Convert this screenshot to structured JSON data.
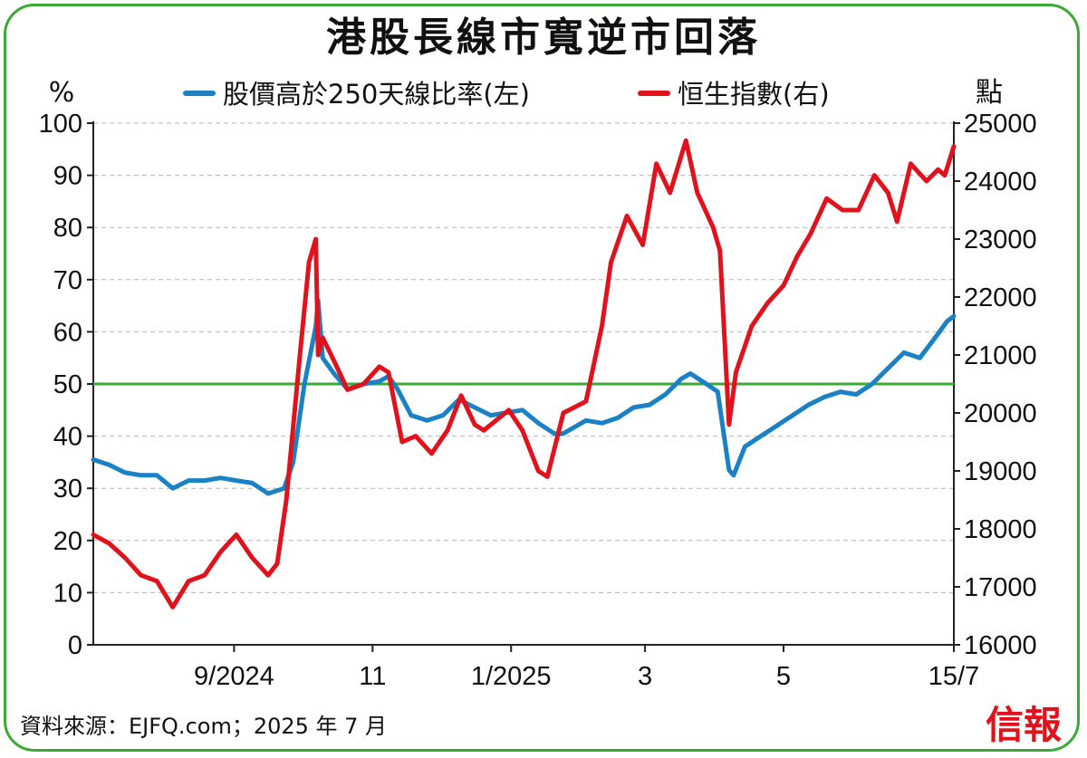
{
  "chart_data": {
    "type": "line",
    "title": "港股長線市寬逆市回落",
    "left_unit": "%",
    "right_unit": "點",
    "x_tick_labels": [
      "9/2024",
      "11",
      "1/2025",
      "3",
      "5",
      "15/7"
    ],
    "x_tick_dates": [
      "2024-09-01",
      "2024-11-01",
      "2025-01-01",
      "2025-03-01",
      "2025-05-01",
      "2025-07-15"
    ],
    "x_range": [
      "2024-07-01",
      "2025-07-15"
    ],
    "y_left": {
      "ticks": [
        0,
        10,
        20,
        30,
        40,
        50,
        60,
        70,
        80,
        90,
        100
      ],
      "range": [
        0,
        100
      ]
    },
    "y_right": {
      "ticks": [
        16000,
        17000,
        18000,
        19000,
        20000,
        21000,
        22000,
        23000,
        24000,
        25000
      ],
      "range": [
        16000,
        25000
      ]
    },
    "reference_line": {
      "axis": "left",
      "value": 50,
      "color": "#3aaa35"
    },
    "series": [
      {
        "name": "股價高於250天線比率(左)",
        "axis": "left",
        "color": "#1a82c4",
        "points": [
          [
            "2024-07-01",
            35.5
          ],
          [
            "2024-07-08",
            34.5
          ],
          [
            "2024-07-15",
            33
          ],
          [
            "2024-07-22",
            32.5
          ],
          [
            "2024-07-29",
            32.5
          ],
          [
            "2024-08-05",
            30
          ],
          [
            "2024-08-12",
            31.5
          ],
          [
            "2024-08-19",
            31.5
          ],
          [
            "2024-08-26",
            32
          ],
          [
            "2024-09-02",
            31.5
          ],
          [
            "2024-09-09",
            31
          ],
          [
            "2024-09-16",
            29
          ],
          [
            "2024-09-23",
            30
          ],
          [
            "2024-09-27",
            35
          ],
          [
            "2024-10-02",
            50
          ],
          [
            "2024-10-07",
            61
          ],
          [
            "2024-10-08",
            66
          ],
          [
            "2024-10-10",
            55
          ],
          [
            "2024-10-15",
            52
          ],
          [
            "2024-10-21",
            49
          ],
          [
            "2024-10-28",
            50
          ],
          [
            "2024-11-04",
            50.5
          ],
          [
            "2024-11-08",
            51.5
          ],
          [
            "2024-11-12",
            49
          ],
          [
            "2024-11-18",
            44
          ],
          [
            "2024-11-25",
            43
          ],
          [
            "2024-12-02",
            44
          ],
          [
            "2024-12-09",
            47
          ],
          [
            "2024-12-16",
            45.5
          ],
          [
            "2024-12-23",
            44
          ],
          [
            "2024-12-30",
            44.5
          ],
          [
            "2025-01-06",
            45
          ],
          [
            "2025-01-13",
            42.5
          ],
          [
            "2025-01-20",
            40.5
          ],
          [
            "2025-01-24",
            40.5
          ],
          [
            "2025-02-03",
            43
          ],
          [
            "2025-02-10",
            42.5
          ],
          [
            "2025-02-17",
            43.5
          ],
          [
            "2025-02-24",
            45.5
          ],
          [
            "2025-03-03",
            46
          ],
          [
            "2025-03-10",
            48
          ],
          [
            "2025-03-17",
            51
          ],
          [
            "2025-03-21",
            52
          ],
          [
            "2025-03-28",
            50
          ],
          [
            "2025-04-02",
            48.5
          ],
          [
            "2025-04-07",
            33.5
          ],
          [
            "2025-04-09",
            32.5
          ],
          [
            "2025-04-14",
            38
          ],
          [
            "2025-04-21",
            40
          ],
          [
            "2025-04-28",
            42
          ],
          [
            "2025-05-05",
            44
          ],
          [
            "2025-05-12",
            46
          ],
          [
            "2025-05-19",
            47.5
          ],
          [
            "2025-05-26",
            48.5
          ],
          [
            "2025-06-02",
            48
          ],
          [
            "2025-06-09",
            50
          ],
          [
            "2025-06-16",
            53
          ],
          [
            "2025-06-23",
            56
          ],
          [
            "2025-06-30",
            55
          ],
          [
            "2025-07-07",
            59
          ],
          [
            "2025-07-12",
            62
          ],
          [
            "2025-07-15",
            63
          ]
        ]
      },
      {
        "name": "恒生指數(右)",
        "axis": "right",
        "color": "#e0121c",
        "points": [
          [
            "2024-07-01",
            17900
          ],
          [
            "2024-07-08",
            17750
          ],
          [
            "2024-07-15",
            17500
          ],
          [
            "2024-07-22",
            17200
          ],
          [
            "2024-07-29",
            17100
          ],
          [
            "2024-08-05",
            16650
          ],
          [
            "2024-08-12",
            17100
          ],
          [
            "2024-08-19",
            17200
          ],
          [
            "2024-08-26",
            17600
          ],
          [
            "2024-09-02",
            17900
          ],
          [
            "2024-09-09",
            17500
          ],
          [
            "2024-09-16",
            17200
          ],
          [
            "2024-09-20",
            17400
          ],
          [
            "2024-09-24",
            18500
          ],
          [
            "2024-09-30",
            21000
          ],
          [
            "2024-10-04",
            22600
          ],
          [
            "2024-10-07",
            23000
          ],
          [
            "2024-10-08",
            21000
          ],
          [
            "2024-10-10",
            21300
          ],
          [
            "2024-10-15",
            20900
          ],
          [
            "2024-10-21",
            20400
          ],
          [
            "2024-10-28",
            20500
          ],
          [
            "2024-11-04",
            20800
          ],
          [
            "2024-11-08",
            20700
          ],
          [
            "2024-11-14",
            19500
          ],
          [
            "2024-11-20",
            19600
          ],
          [
            "2024-11-27",
            19300
          ],
          [
            "2024-12-04",
            19700
          ],
          [
            "2024-12-10",
            20300
          ],
          [
            "2024-12-16",
            19800
          ],
          [
            "2024-12-20",
            19700
          ],
          [
            "2024-12-31",
            20050
          ],
          [
            "2025-01-06",
            19700
          ],
          [
            "2025-01-13",
            19000
          ],
          [
            "2025-01-17",
            18900
          ],
          [
            "2025-01-24",
            20000
          ],
          [
            "2025-02-03",
            20200
          ],
          [
            "2025-02-10",
            21500
          ],
          [
            "2025-02-14",
            22600
          ],
          [
            "2025-02-21",
            23400
          ],
          [
            "2025-02-28",
            22900
          ],
          [
            "2025-03-06",
            24300
          ],
          [
            "2025-03-12",
            23800
          ],
          [
            "2025-03-19",
            24700
          ],
          [
            "2025-03-24",
            23800
          ],
          [
            "2025-03-31",
            23200
          ],
          [
            "2025-04-03",
            22800
          ],
          [
            "2025-04-07",
            19800
          ],
          [
            "2025-04-10",
            20700
          ],
          [
            "2025-04-17",
            21500
          ],
          [
            "2025-04-24",
            21900
          ],
          [
            "2025-05-01",
            22200
          ],
          [
            "2025-05-07",
            22700
          ],
          [
            "2025-05-13",
            23100
          ],
          [
            "2025-05-20",
            23700
          ],
          [
            "2025-05-27",
            23500
          ],
          [
            "2025-06-03",
            23500
          ],
          [
            "2025-06-10",
            24100
          ],
          [
            "2025-06-16",
            23800
          ],
          [
            "2025-06-20",
            23300
          ],
          [
            "2025-06-26",
            24300
          ],
          [
            "2025-07-03",
            24000
          ],
          [
            "2025-07-08",
            24200
          ],
          [
            "2025-07-11",
            24100
          ],
          [
            "2025-07-15",
            24600
          ]
        ]
      }
    ]
  },
  "source": "資料來源：EJFQ.com；2025 年 7 月",
  "logo_text": "信報"
}
